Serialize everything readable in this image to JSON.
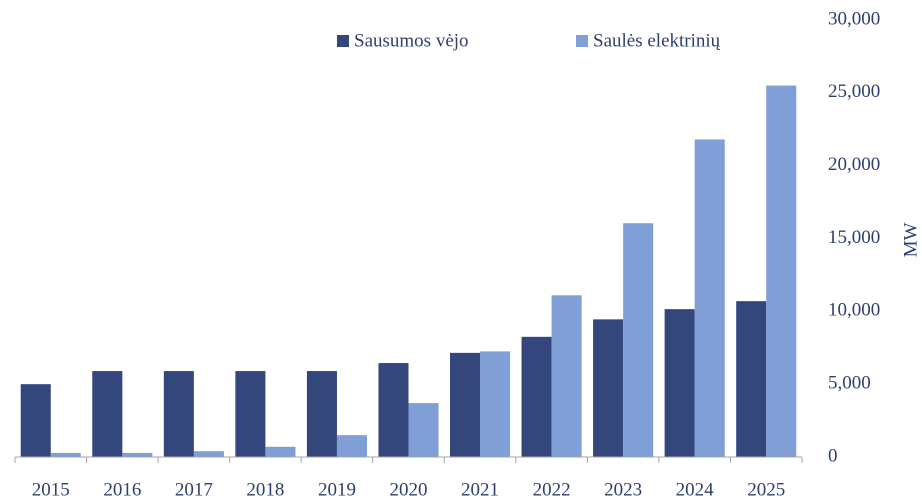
{
  "chart_data": {
    "type": "bar",
    "y_label": "MW",
    "categories": [
      "2015",
      "2016",
      "2017",
      "2018",
      "2019",
      "2020",
      "2021",
      "2022",
      "2023",
      "2024",
      "2025"
    ],
    "series": [
      {
        "name": "Sausumos vėjo",
        "color": "#34477d",
        "values": [
          5000,
          5900,
          5900,
          5900,
          5900,
          6450,
          7150,
          8250,
          9450,
          10150,
          10700
        ]
      },
      {
        "name": "Saulės elektrinių",
        "color": "#7f9fd6",
        "values": [
          280,
          280,
          400,
          700,
          1500,
          3700,
          7250,
          11100,
          16050,
          21800,
          25500
        ]
      }
    ],
    "ylim": [
      0,
      30000
    ],
    "yticks": [
      0,
      {
        "value": 5000,
        "label": "5,000"
      },
      {
        "value": 10000,
        "label": "10,000"
      },
      {
        "value": 15000,
        "label": "15,000"
      },
      {
        "value": 20000,
        "label": "20,000"
      },
      {
        "value": 25000,
        "label": "25,000"
      },
      {
        "value": 30000,
        "label": "30,000"
      }
    ],
    "legend": "top"
  }
}
